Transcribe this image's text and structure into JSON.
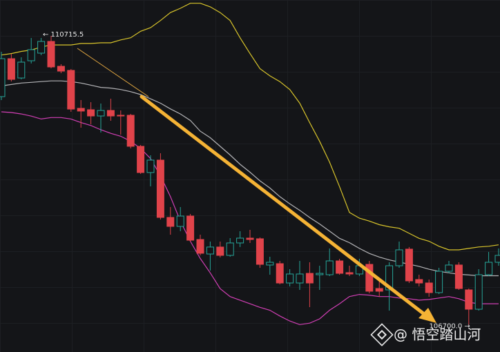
{
  "chart_data": {
    "type": "candlestick",
    "ylim": [
      106319,
      111215
    ],
    "up_color": "#26a69a",
    "down_color": "#e0434a",
    "open": [
      109871,
      110399,
      110130,
      110370,
      110476,
      110639,
      110293,
      110236,
      109708,
      109689,
      109602,
      109679,
      109612,
      109612,
      109180,
      108815,
      108988,
      108191,
      108066,
      108210,
      107884,
      107682,
      107779,
      107663,
      107836,
      107903,
      107894,
      107529,
      107548,
      107279,
      107279,
      107413,
      107394,
      107394,
      107586,
      107423,
      107404,
      107538,
      107202,
      107183,
      107519,
      107750,
      107327,
      107279,
      107145,
      107442,
      107529,
      107183,
      106914,
      107394,
      107567
    ],
    "high": [
      110495,
      110466,
      110418,
      110687,
      110687,
      110715.5,
      110322,
      110255,
      109823,
      109794,
      109775,
      109842,
      109679,
      109631,
      109199,
      109055,
      109084,
      108335,
      108335,
      108239,
      107951,
      107855,
      107855,
      107903,
      107999,
      108018,
      107913,
      107644,
      107586,
      107471,
      107586,
      107567,
      107519,
      107759,
      107615,
      107519,
      107615,
      107586,
      107298,
      107567,
      107855,
      107779,
      107394,
      107327,
      107490,
      107586,
      107567,
      107202,
      107471,
      107711,
      107759
    ],
    "low": [
      109823,
      110082,
      110111,
      110332,
      110447,
      110265,
      110197,
      109660,
      109439,
      109487,
      109372,
      109535,
      109343,
      109151,
      108796,
      108623,
      108162,
      107951,
      107999,
      107855,
      107663,
      107452,
      107634,
      107644,
      107779,
      107836,
      107490,
      107394,
      107260,
      107231,
      107183,
      106943,
      107183,
      107375,
      107394,
      107375,
      107375,
      107135,
      107087,
      106895,
      107490,
      107279,
      107231,
      107087,
      107125,
      107413,
      107183,
      106700.0,
      106895,
      107375,
      107519
    ],
    "close": [
      110399,
      110111,
      110351,
      110524,
      110639,
      110284,
      110226,
      109698,
      109670,
      109602,
      109679,
      109602,
      109602,
      109180,
      108815,
      108988,
      108191,
      108066,
      108210,
      107874,
      107692,
      107779,
      107663,
      107836,
      107903,
      107884,
      107538,
      107567,
      107279,
      107404,
      107404,
      107279,
      107413,
      107586,
      107413,
      107404,
      107519,
      107164,
      107164,
      107519,
      107740,
      107308,
      107279,
      107145,
      107442,
      107529,
      107202,
      106914,
      107394,
      107567,
      107663
    ],
    "lines": [
      {
        "color": "#d9c52b",
        "values": [
          110450,
          110470,
          110500,
          110520,
          110560,
          110590,
          110590,
          110590,
          110610,
          110610,
          110620,
          110620,
          110660,
          110690,
          110780,
          110830,
          110930,
          111040,
          111100,
          111170,
          111170,
          111120,
          111040,
          110930,
          110690,
          110470,
          110260,
          110160,
          110080,
          109970,
          109780,
          109510,
          109250,
          108960,
          108620,
          108260,
          108180,
          108140,
          108090,
          108060,
          108040,
          107970,
          107900,
          107860,
          107790,
          107740,
          107740,
          107760,
          107780,
          107790,
          107810
        ]
      },
      {
        "color": "#b5b5b8",
        "values": [
          110020,
          110040,
          110060,
          110070,
          110080,
          110090,
          110090,
          110080,
          110060,
          110030,
          110000,
          109990,
          109970,
          109940,
          109900,
          109840,
          109780,
          109700,
          109630,
          109540,
          109390,
          109300,
          109180,
          109060,
          108930,
          108820,
          108700,
          108600,
          108480,
          108380,
          108290,
          108190,
          108100,
          108000,
          107900,
          107840,
          107760,
          107690,
          107640,
          107600,
          107570,
          107540,
          107510,
          107470,
          107440,
          107420,
          107400,
          107390,
          107380,
          107380,
          107380
        ]
      },
      {
        "color": "#d23fb5",
        "values": [
          109660,
          109650,
          109630,
          109600,
          109560,
          109580,
          109580,
          109560,
          109510,
          109470,
          109410,
          109360,
          109320,
          109250,
          109150,
          109010,
          108770,
          108480,
          108140,
          107860,
          107620,
          107420,
          107200,
          107090,
          107040,
          106990,
          106940,
          106900,
          106820,
          106750,
          106700,
          106720,
          106780,
          106900,
          106990,
          107090,
          107120,
          107110,
          107090,
          107090,
          107070,
          107060,
          107040,
          107050,
          107070,
          107090,
          107060,
          107010,
          106990,
          106990,
          106990
        ]
      }
    ],
    "high_label": "← 110715.5",
    "low_label": "106700.0 →",
    "watermark": "@ 悟空踏山河"
  }
}
